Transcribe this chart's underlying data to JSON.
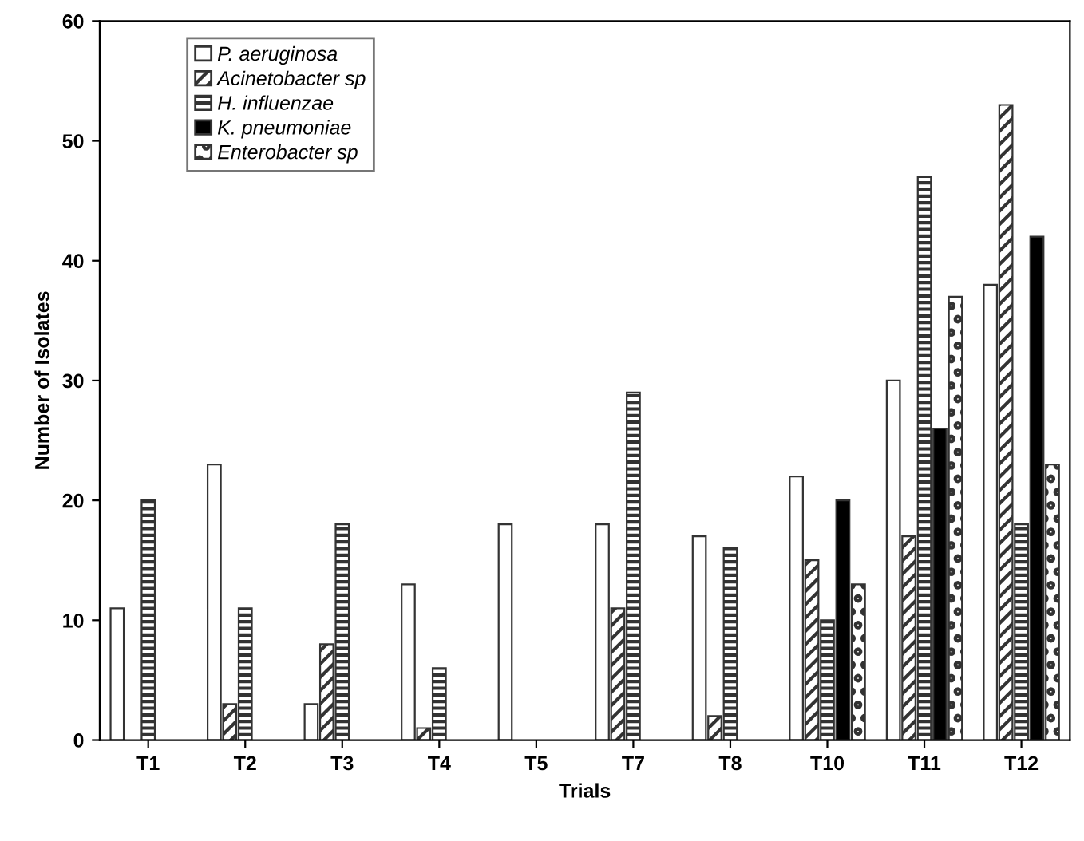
{
  "chart_data": {
    "type": "bar",
    "xlabel": "Trials",
    "ylabel": "Number of Isolates",
    "categories": [
      "T1",
      "T2",
      "T3",
      "T4",
      "T5",
      "T7",
      "T8",
      "T10",
      "T11",
      "T12"
    ],
    "series": [
      {
        "name": "P. aeruginosa",
        "color": "#ffffff",
        "values": [
          11,
          23,
          3,
          13,
          18,
          18,
          17,
          22,
          30,
          38
        ]
      },
      {
        "name": "Acinetobacter sp",
        "color": "#333333",
        "values": [
          null,
          3,
          8,
          1,
          null,
          11,
          2,
          15,
          17,
          53
        ]
      },
      {
        "name": "H. influenzae",
        "color": "#333333",
        "values": [
          20,
          11,
          18,
          6,
          null,
          29,
          16,
          10,
          47,
          18
        ]
      },
      {
        "name": "K. pneumoniae",
        "color": "#000000",
        "values": [
          null,
          null,
          null,
          null,
          null,
          null,
          null,
          20,
          26,
          42
        ]
      },
      {
        "name": "Enterobacter sp",
        "color": "#333333",
        "values": [
          null,
          null,
          null,
          null,
          null,
          null,
          null,
          13,
          37,
          23
        ]
      }
    ],
    "ylim": [
      0,
      60
    ],
    "yticks": [
      0,
      10,
      20,
      30,
      40,
      50,
      60
    ],
    "grid": false,
    "legend": "top left"
  }
}
